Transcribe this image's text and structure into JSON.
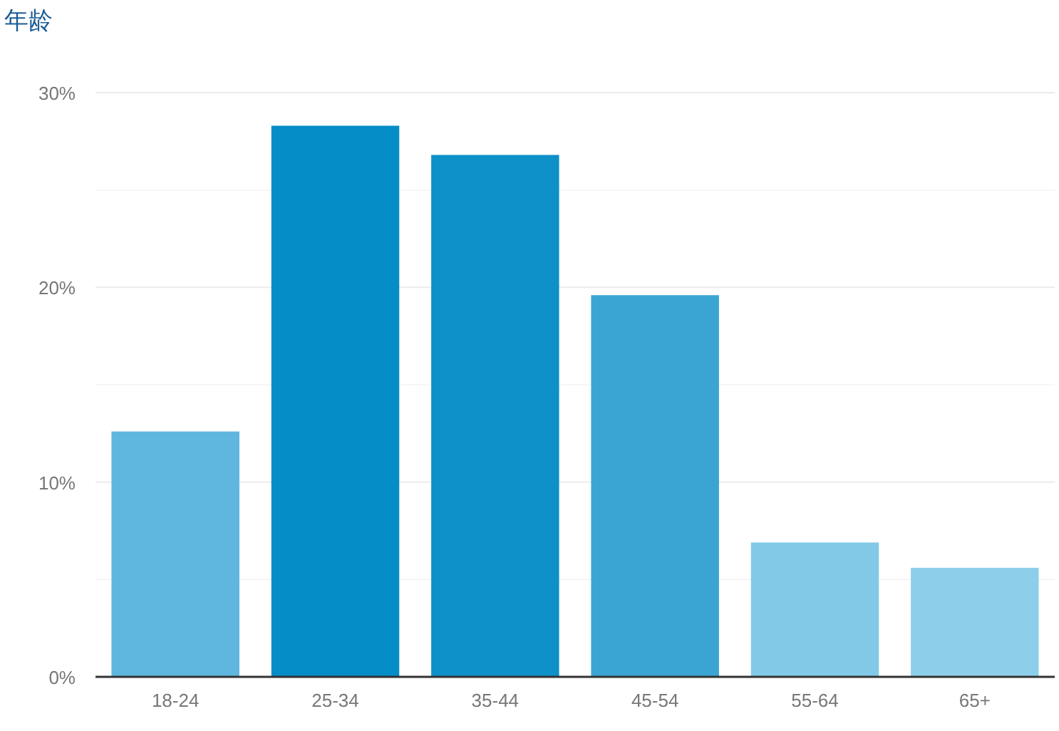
{
  "chart_data": {
    "type": "bar",
    "title": "年龄",
    "categories": [
      "18-24",
      "25-34",
      "35-44",
      "45-54",
      "55-64",
      "65+"
    ],
    "values": [
      12.6,
      28.3,
      26.8,
      19.6,
      6.9,
      5.6
    ],
    "colors": [
      "#5fb6de",
      "#058dc7",
      "#0e90c9",
      "#3aa5d3",
      "#82c9e8",
      "#8dcfea"
    ],
    "ylim": [
      0,
      30
    ],
    "yticks": [
      {
        "value": 0,
        "label": "0%"
      },
      {
        "value": 5,
        "label": null
      },
      {
        "value": 10,
        "label": "10%"
      },
      {
        "value": 15,
        "label": null
      },
      {
        "value": 20,
        "label": "20%"
      },
      {
        "value": 25,
        "label": null
      },
      {
        "value": 30,
        "label": "30%"
      }
    ],
    "grid": "y"
  }
}
